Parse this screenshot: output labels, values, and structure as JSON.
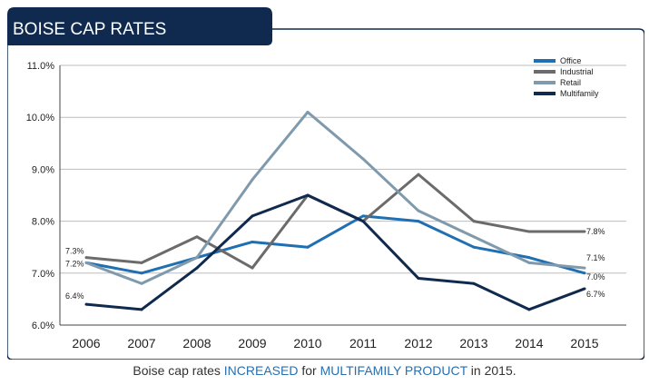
{
  "header": {
    "title": "BOISE CAP RATES"
  },
  "caption": {
    "prefix": "Boise cap rates ",
    "highlight1": "INCREASED",
    "middle": " for ",
    "highlight2": "MULTIFAMILY PRODUCT",
    "suffix": " in 2015."
  },
  "colors": {
    "header_bg": "#0f2a4e",
    "border": "#0f2a4e",
    "caption_highlight": "#2a6fad"
  },
  "chart_data": {
    "type": "line",
    "title": "BOISE CAP RATES",
    "categories": [
      "2006",
      "2007",
      "2008",
      "2009",
      "2010",
      "2011",
      "2012",
      "2013",
      "2014",
      "2015"
    ],
    "ylim": [
      6.0,
      11.0
    ],
    "yticks": [
      "6.0%",
      "7.0%",
      "8.0%",
      "9.0%",
      "10.0%",
      "11.0%"
    ],
    "grid": true,
    "legend_position": "top-right",
    "series": [
      {
        "name": "Office",
        "color": "#1f6fb2",
        "values": [
          7.2,
          7.0,
          7.3,
          7.6,
          7.5,
          8.1,
          8.0,
          7.5,
          7.3,
          7.0
        ]
      },
      {
        "name": "Industrial",
        "color": "#6b6b6b",
        "values": [
          7.3,
          7.2,
          7.7,
          7.1,
          8.5,
          8.0,
          8.9,
          8.0,
          7.8,
          7.8
        ]
      },
      {
        "name": "Retail",
        "color": "#7f99ad",
        "values": [
          7.2,
          6.8,
          7.3,
          8.8,
          10.1,
          9.2,
          8.2,
          7.7,
          7.2,
          7.1
        ]
      },
      {
        "name": "Multifamily",
        "color": "#0f2a4e",
        "values": [
          6.4,
          6.3,
          7.1,
          8.1,
          8.5,
          8.0,
          6.9,
          6.8,
          6.3,
          6.7
        ]
      }
    ],
    "annotations": {
      "start": [
        "7.3%",
        "7.2%",
        "6.4%"
      ],
      "end": [
        "7.8%",
        "7.1%",
        "7.0%",
        "6.7%"
      ]
    }
  }
}
